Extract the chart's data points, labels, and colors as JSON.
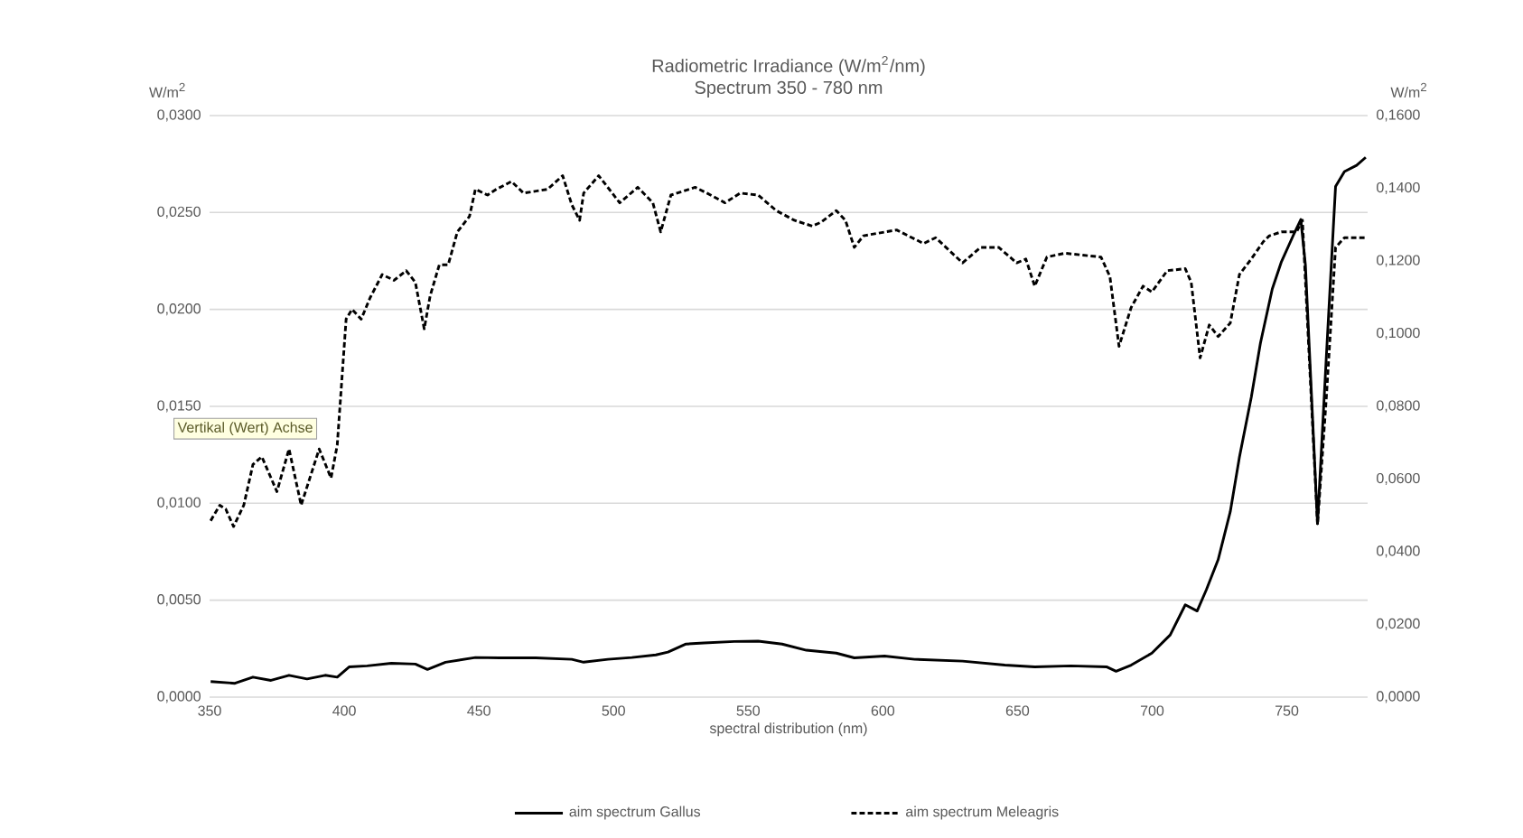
{
  "chart_data": {
    "type": "line",
    "title": "Radiometric Irradiance (W/m$^{2}$/nm)",
    "subtitle": "Spectrum 350 - 780 nm",
    "xlabel": "spectral distribution (nm)",
    "ylabel": "W/m$^{2}$",
    "y2label": "W/m$^{2}$",
    "annotations": [
      "Vertikal (Wert) Achse"
    ],
    "xlim": [
      350,
      780
    ],
    "xticks": [
      350,
      400,
      450,
      500,
      550,
      600,
      650,
      700,
      750
    ],
    "ylim": [
      0,
      0.03
    ],
    "yticks": [
      {
        "value": 0,
        "label": "0,0000"
      },
      {
        "value": 0.005,
        "label": "0,0050"
      },
      {
        "value": 0.01,
        "label": "0,0100"
      },
      {
        "value": 0.015,
        "label": "0,0150"
      },
      {
        "value": 0.02,
        "label": "0,0200"
      },
      {
        "value": 0.025,
        "label": "0,0250"
      },
      {
        "value": 0.03,
        "label": "0,0300"
      }
    ],
    "y2lim": [
      0,
      0.16
    ],
    "y2ticks": [
      {
        "value": 0,
        "label": "0,0000"
      },
      {
        "value": 0.02,
        "label": "0,0200"
      },
      {
        "value": 0.04,
        "label": "0,0400"
      },
      {
        "value": 0.06,
        "label": "0,0600"
      },
      {
        "value": 0.08,
        "label": "0,0800"
      },
      {
        "value": 0.1,
        "label": "0,1000"
      },
      {
        "value": 0.12,
        "label": "0,1200"
      },
      {
        "value": 0.14,
        "label": "0,1400"
      },
      {
        "value": 0.16,
        "label": "0,1600"
      }
    ],
    "grid": "y",
    "legend": "bottom",
    "marker": "none",
    "series": [
      {
        "name": "aim spectrum Gallus",
        "color": "#000000",
        "line_style": "solid",
        "axis": "y2",
        "x": [
          350.4,
          359.4,
          366.1,
          372.8,
          379.5,
          386.2,
          392.9,
          397.4,
          401.8,
          408.5,
          417.5,
          426.4,
          430.9,
          437.6,
          448.7,
          457.7,
          471.1,
          484.5,
          488.9,
          497.9,
          506.8,
          515.7,
          520.2,
          526.9,
          533.6,
          544.8,
          553.7,
          562.6,
          571.6,
          582.7,
          589.4,
          600.6,
          611.8,
          629.6,
          645.3,
          656.4,
          669.8,
          683.2,
          686.6,
          692.2,
          699.9,
          706.7,
          712.3,
          716.7,
          720.1,
          724.5,
          729.0,
          732.4,
          736.8,
          740.2,
          744.6,
          748.0,
          752.5,
          755.2,
          756.9,
          761.4,
          764.7,
          768.1,
          771.4,
          775.9,
          779.3
        ],
        "values": [
          0.0043,
          0.0038,
          0.0055,
          0.0046,
          0.006,
          0.005,
          0.006,
          0.0055,
          0.0083,
          0.0086,
          0.0093,
          0.0091,
          0.0076,
          0.0096,
          0.0109,
          0.0108,
          0.0108,
          0.0104,
          0.0096,
          0.0104,
          0.0109,
          0.0116,
          0.0124,
          0.0146,
          0.0149,
          0.0153,
          0.0154,
          0.0146,
          0.0129,
          0.0121,
          0.0108,
          0.0113,
          0.0104,
          0.0099,
          0.0088,
          0.0083,
          0.0086,
          0.0083,
          0.0071,
          0.0088,
          0.0121,
          0.0171,
          0.0254,
          0.0237,
          0.0295,
          0.0378,
          0.051,
          0.066,
          0.0825,
          0.0974,
          0.1123,
          0.1198,
          0.1272,
          0.1314,
          0.1189,
          0.0477,
          0.0941,
          0.1405,
          0.1446,
          0.1463,
          0.1485
        ]
      },
      {
        "name": "aim spectrum Meleagris",
        "color": "#000000",
        "line_style": "dashed",
        "x": [
          350.4,
          353.8,
          356.0,
          358.9,
          362.7,
          366.1,
          369.4,
          375.0,
          379.5,
          384.0,
          390.7,
          395.1,
          397.4,
          400.7,
          402.9,
          406.3,
          409.6,
          414.1,
          418.5,
          423.0,
          426.4,
          429.7,
          431.9,
          435.3,
          438.6,
          442.0,
          446.5,
          448.7,
          453.2,
          456.5,
          462.1,
          466.6,
          475.5,
          481.1,
          484.5,
          487.4,
          488.9,
          494.5,
          502.3,
          509.0,
          514.6,
          517.5,
          521.3,
          530.3,
          534.7,
          541.4,
          547.0,
          553.7,
          560.4,
          567.1,
          573.8,
          577.1,
          582.7,
          586.1,
          589.4,
          592.8,
          605.1,
          615.1,
          619.6,
          629.6,
          636.3,
          643.0,
          649.7,
          653.1,
          656.4,
          660.9,
          667.6,
          681.0,
          684.3,
          687.7,
          692.2,
          696.6,
          699.9,
          705.6,
          712.3,
          714.5,
          717.8,
          721.2,
          724.5,
          729.0,
          732.4,
          736.8,
          741.3,
          743.5,
          748.0,
          753.6,
          755.8,
          761.4,
          764.7,
          768.1,
          771.4,
          779.3
        ],
        "values": [
          0.0091,
          0.0099,
          0.0097,
          0.0088,
          0.0099,
          0.012,
          0.0124,
          0.0106,
          0.0128,
          0.0099,
          0.0128,
          0.0113,
          0.013,
          0.0195,
          0.02,
          0.0195,
          0.0206,
          0.0218,
          0.0215,
          0.022,
          0.0214,
          0.019,
          0.0207,
          0.0223,
          0.0223,
          0.024,
          0.0248,
          0.0262,
          0.0259,
          0.0262,
          0.0266,
          0.026,
          0.0262,
          0.0269,
          0.0254,
          0.0246,
          0.026,
          0.0269,
          0.0255,
          0.0263,
          0.0255,
          0.024,
          0.0259,
          0.0263,
          0.026,
          0.0255,
          0.026,
          0.0259,
          0.0251,
          0.0246,
          0.0243,
          0.0245,
          0.0251,
          0.0246,
          0.0232,
          0.0238,
          0.0241,
          0.0234,
          0.0237,
          0.0224,
          0.0232,
          0.0232,
          0.0224,
          0.0226,
          0.0212,
          0.0227,
          0.0229,
          0.0227,
          0.0217,
          0.0181,
          0.0201,
          0.0212,
          0.0209,
          0.022,
          0.0221,
          0.0214,
          0.0175,
          0.0192,
          0.0186,
          0.0193,
          0.0218,
          0.0226,
          0.0235,
          0.0238,
          0.024,
          0.024,
          0.0246,
          0.0089,
          0.0155,
          0.0232,
          0.0237,
          0.0237
        ]
      }
    ]
  }
}
